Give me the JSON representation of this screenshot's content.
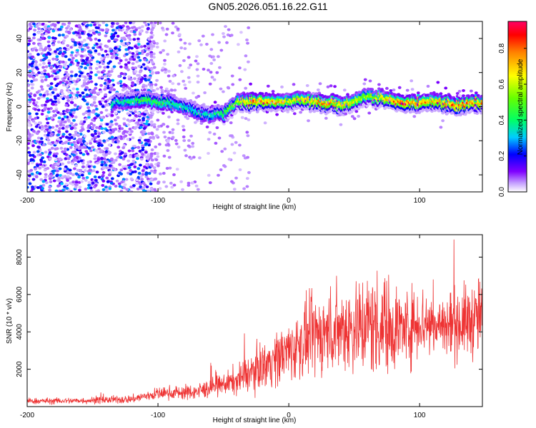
{
  "title": "GN05.2026.051.16.22.G11",
  "chart_data": [
    {
      "type": "heatmap",
      "title": "GN05.2026.051.16.22.G11",
      "xlabel": "Height of straight line (km)",
      "ylabel": "Frequency (Hz)",
      "xlim": [
        -200,
        148
      ],
      "ylim": [
        -50,
        50
      ],
      "xticks": [
        -200,
        -100,
        0,
        100
      ],
      "yticks": [
        -40,
        -20,
        0,
        20,
        40
      ],
      "grid": false,
      "colorbar": {
        "label": "Normalized spectral amplitude",
        "range": [
          0.0,
          0.95
        ],
        "ticks": [
          0.0,
          0.2,
          0.4,
          0.6,
          0.8
        ],
        "colormap": [
          "#ffffff",
          "#c6a3ff",
          "#7f00ff",
          "#0000ff",
          "#00ccff",
          "#00ff66",
          "#66ff00",
          "#ffff00",
          "#ff8000",
          "#ff0000",
          "#ff0066"
        ]
      },
      "ridge": {
        "x": [
          -135,
          -120,
          -110,
          -100,
          -90,
          -80,
          -70,
          -60,
          -50,
          -40,
          -30,
          -20,
          -10,
          0,
          10,
          20,
          30,
          40,
          50,
          60,
          70,
          80,
          90,
          100,
          110,
          120,
          130,
          140,
          148
        ],
        "frequency": [
          2,
          3,
          4,
          3,
          2,
          0,
          -3,
          -5,
          -4,
          2,
          3,
          3,
          3,
          3,
          4,
          3,
          2,
          1,
          3,
          6,
          5,
          3,
          2,
          2,
          3,
          2,
          1,
          2,
          2
        ],
        "peak_amplitude": [
          0.4,
          0.45,
          0.5,
          0.5,
          0.45,
          0.4,
          0.4,
          0.4,
          0.5,
          0.6,
          0.85,
          0.9,
          0.8,
          0.7,
          0.75,
          0.8,
          0.85,
          0.8,
          0.7,
          0.6,
          0.7,
          0.85,
          0.9,
          0.85,
          0.8,
          0.85,
          0.9,
          0.85,
          0.8
        ]
      },
      "noise_region": {
        "x": [
          -200,
          -105
        ],
        "frequency": [
          -50,
          50
        ],
        "amplitude": [
          0.05,
          0.3
        ]
      }
    },
    {
      "type": "line",
      "xlabel": "Height of straight line (km)",
      "ylabel": "SNR (10 * v/v)",
      "xlim": [
        -200,
        148
      ],
      "ylim": [
        0,
        9200
      ],
      "xticks": [
        -200,
        -100,
        0,
        100
      ],
      "yticks": [
        2000,
        4000,
        6000,
        8000
      ],
      "grid": false,
      "color": "#ee3333",
      "series": [
        {
          "x": [
            -200,
            -180,
            -160,
            -140,
            -120,
            -100,
            -90,
            -80,
            -70,
            -60,
            -50,
            -40,
            -30,
            -20,
            -10,
            0,
            10,
            20,
            30,
            40,
            50,
            60,
            70,
            80,
            90,
            100,
            110,
            120,
            130,
            140,
            148
          ],
          "values": [
            300,
            300,
            320,
            350,
            400,
            700,
            750,
            750,
            800,
            1000,
            1200,
            1400,
            1800,
            2200,
            2600,
            3000,
            3400,
            3800,
            4000,
            4200,
            4300,
            4400,
            4400,
            4300,
            4200,
            4600,
            4400,
            4300,
            4500,
            4600,
            4800
          ],
          "spread": [
            150,
            150,
            150,
            180,
            200,
            300,
            320,
            350,
            400,
            450,
            500,
            700,
            900,
            1100,
            1300,
            1500,
            1700,
            1900,
            2000,
            2100,
            2300,
            2500,
            2500,
            2200,
            1800,
            1800,
            1700,
            1600,
            1700,
            1800,
            2000
          ],
          "max_value": 9200
        }
      ]
    }
  ]
}
